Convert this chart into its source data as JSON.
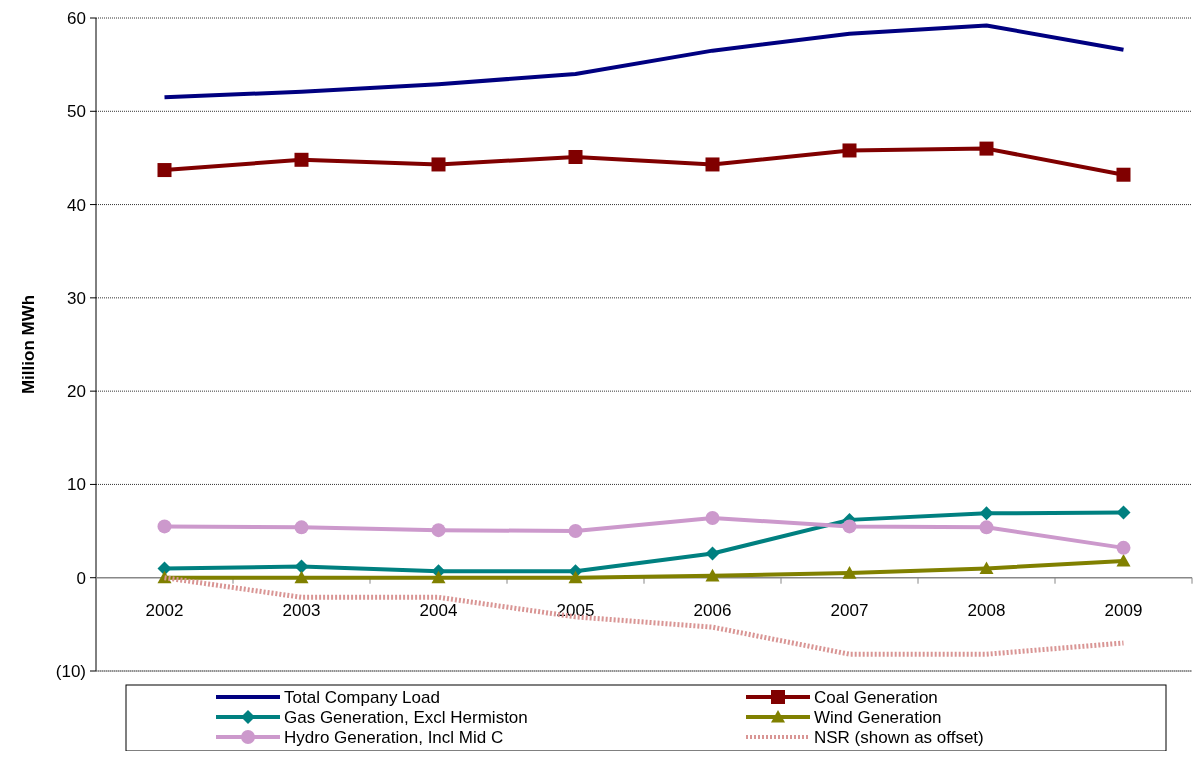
{
  "chart_data": {
    "type": "line",
    "ylabel": "Million MWh",
    "categories": [
      "2002",
      "2003",
      "2004",
      "2005",
      "2006",
      "2007",
      "2008",
      "2009"
    ],
    "ylim": [
      -10,
      60
    ],
    "yticks": [
      {
        "value": -10,
        "label": "(10)"
      },
      0,
      10,
      20,
      30,
      40,
      50,
      60
    ],
    "grid": "y",
    "legend": "bottom",
    "series": [
      {
        "name": "Total Company Load",
        "color": "#000080",
        "marker": "none",
        "values": [
          51.5,
          52.1,
          52.9,
          54.0,
          56.5,
          58.3,
          59.2,
          56.6
        ]
      },
      {
        "name": "Coal Generation",
        "color": "#800000",
        "marker": "square",
        "values": [
          43.7,
          44.8,
          44.3,
          45.1,
          44.3,
          45.8,
          46.0,
          43.2
        ]
      },
      {
        "name": "Gas Generation, Excl Hermiston",
        "color": "#008080",
        "marker": "diamond",
        "values": [
          1.0,
          1.2,
          0.7,
          0.7,
          2.6,
          6.2,
          6.9,
          7.0
        ]
      },
      {
        "name": "Wind Generation",
        "color": "#808000",
        "marker": "triangle",
        "values": [
          0,
          0,
          0,
          0,
          0.2,
          0.5,
          1.0,
          1.8
        ]
      },
      {
        "name": "Hydro Generation, Incl Mid C",
        "color": "#cc99cc",
        "marker": "circle",
        "values": [
          5.5,
          5.4,
          5.1,
          5.0,
          6.4,
          5.5,
          5.4,
          3.2
        ]
      },
      {
        "name": "NSR (shown as offset)",
        "color": "#d99594",
        "marker": "none",
        "line_style": "dotted",
        "values": [
          0,
          -2.1,
          -2.1,
          -4.2,
          -5.3,
          -8.2,
          -8.2,
          -7.0
        ]
      }
    ]
  }
}
